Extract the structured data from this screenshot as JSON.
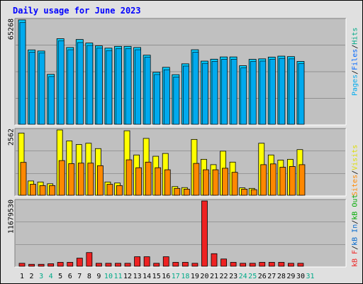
{
  "title": "Daily usage for June 2023",
  "colors": {
    "hits": "#00ccff",
    "files": "#0066ff",
    "pages": "#00aaee",
    "visits": "#ffff00",
    "sites": "#ff8800",
    "kb_in": "#0066cc",
    "kb_out": "#00aa00",
    "kb_f": "#ee2222",
    "title": "#0000ff",
    "weekend_tick": "#00aa88",
    "weekday_tick": "#000000"
  },
  "chart_data": [
    {
      "type": "bar",
      "panel": "hits-files-pages",
      "categories": [
        "1",
        "2",
        "3",
        "4",
        "5",
        "6",
        "7",
        "8",
        "9",
        "10",
        "11",
        "12",
        "13",
        "14",
        "15",
        "16",
        "17",
        "18",
        "19",
        "20",
        "21",
        "22",
        "23",
        "24",
        "25",
        "26",
        "27",
        "28",
        "29",
        "30",
        "31"
      ],
      "ytick_label": "65268",
      "ymax": 65268,
      "series": [
        {
          "name": "Hits",
          "values": [
            65268,
            46500,
            45800,
            31200,
            53500,
            48000,
            53000,
            50800,
            49000,
            47600,
            48700,
            48700,
            48000,
            43200,
            32500,
            35600,
            31000,
            37800,
            46600,
            39500,
            40700,
            42100,
            42100,
            36600,
            40600,
            40900,
            42000,
            42600,
            42300,
            39300,
            0
          ]
        },
        {
          "name": "Files",
          "values": [
            64500,
            46000,
            45400,
            30700,
            53000,
            47500,
            52000,
            50200,
            48500,
            47000,
            48200,
            48200,
            47500,
            42800,
            32000,
            35000,
            30500,
            37300,
            46000,
            39000,
            40200,
            41600,
            41600,
            36100,
            40100,
            40400,
            41500,
            42100,
            41800,
            38800,
            0
          ]
        },
        {
          "name": "Pages",
          "values": [
            0,
            0,
            0,
            0,
            0,
            0,
            0,
            0,
            0,
            0,
            0,
            0,
            0,
            0,
            0,
            0,
            0,
            0,
            0,
            0,
            0,
            0,
            0,
            0,
            0,
            0,
            0,
            0,
            0,
            0,
            0
          ]
        }
      ],
      "legend": [
        "Pages",
        "Files",
        "Hits"
      ]
    },
    {
      "type": "bar",
      "panel": "visits-sites",
      "categories": [
        "1",
        "2",
        "3",
        "4",
        "5",
        "6",
        "7",
        "8",
        "9",
        "10",
        "11",
        "12",
        "13",
        "14",
        "15",
        "16",
        "17",
        "18",
        "19",
        "20",
        "21",
        "22",
        "23",
        "24",
        "25",
        "26",
        "27",
        "28",
        "29",
        "30",
        "31"
      ],
      "ytick_label": "2562",
      "ymax": 2562,
      "series": [
        {
          "name": "Visits",
          "values": [
            2440,
            560,
            520,
            450,
            2562,
            2130,
            1990,
            2040,
            1830,
            520,
            480,
            2530,
            1580,
            2230,
            1530,
            1640,
            340,
            300,
            2190,
            1410,
            1200,
            1730,
            1300,
            290,
            270,
            2040,
            1580,
            1380,
            1410,
            1790,
            0
          ]
        },
        {
          "name": "Sites",
          "values": [
            1290,
            430,
            380,
            380,
            1360,
            1240,
            1260,
            1260,
            1160,
            430,
            380,
            1390,
            1080,
            1300,
            1080,
            1000,
            270,
            240,
            1250,
            1000,
            1000,
            1060,
            900,
            240,
            220,
            1200,
            1230,
            1100,
            1130,
            1200,
            0
          ]
        }
      ],
      "legend": [
        "Sites",
        "Visits"
      ]
    },
    {
      "type": "bar",
      "panel": "kb-f-in-out",
      "categories": [
        "1",
        "2",
        "3",
        "4",
        "5",
        "6",
        "7",
        "8",
        "9",
        "10",
        "11",
        "12",
        "13",
        "14",
        "15",
        "16",
        "17",
        "18",
        "19",
        "20",
        "21",
        "22",
        "23",
        "24",
        "25",
        "26",
        "27",
        "28",
        "29",
        "30",
        "31"
      ],
      "ytick_label": "11679530",
      "ymax": 11679530,
      "series": [
        {
          "name": "KB F",
          "values": [
            530000,
            350000,
            350000,
            450000,
            700000,
            700000,
            1450000,
            2450000,
            530000,
            530000,
            530000,
            530000,
            1700000,
            1700000,
            530000,
            1700000,
            700000,
            700000,
            530000,
            11679530,
            2250000,
            1300000,
            700000,
            530000,
            530000,
            700000,
            700000,
            700000,
            530000,
            530000,
            0
          ]
        },
        {
          "name": "KB In",
          "values": [
            0,
            0,
            0,
            0,
            0,
            0,
            0,
            0,
            0,
            0,
            0,
            0,
            0,
            0,
            0,
            0,
            0,
            0,
            0,
            0,
            0,
            0,
            0,
            0,
            0,
            0,
            0,
            0,
            0,
            0,
            0
          ]
        },
        {
          "name": "KB Out",
          "values": [
            0,
            0,
            0,
            0,
            0,
            0,
            0,
            0,
            0,
            0,
            0,
            0,
            0,
            0,
            0,
            0,
            0,
            0,
            0,
            0,
            0,
            0,
            0,
            0,
            0,
            0,
            0,
            0,
            0,
            0,
            0
          ]
        }
      ],
      "legend": [
        "KB F",
        "KB In",
        "KB Out"
      ]
    }
  ],
  "weekend_days": [
    "3",
    "4",
    "10",
    "11",
    "17",
    "18",
    "24",
    "25",
    "31"
  ],
  "legend_labels": {
    "pages": "Pages",
    "files": "Files",
    "hits": "Hits",
    "sites": "Sites",
    "visits": "Visits",
    "kb_f": "kB F",
    "kb_in": "kB In",
    "kb_out": "kB Out",
    "sep": "/"
  }
}
